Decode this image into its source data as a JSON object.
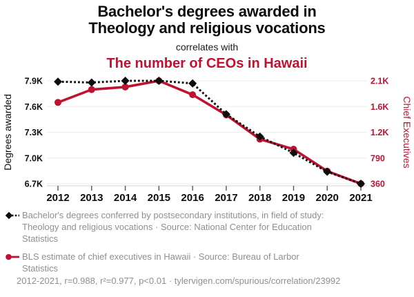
{
  "header": {
    "title_line1": "Bachelor's degrees awarded in",
    "title_line2": "Theology and religious vocations",
    "connector": "correlates with",
    "subtitle": "The number of CEOs in Hawaii"
  },
  "colors": {
    "accent_red": "#c01230",
    "series_black": "#0d0d0d",
    "legend_gray": "#8f8f8f",
    "gridline": "#ececec",
    "axis_line": "#d4d4d4"
  },
  "chart_data": {
    "type": "line",
    "x": [
      2012,
      2013,
      2014,
      2015,
      2016,
      2017,
      2018,
      2019,
      2020,
      2021
    ],
    "x_tick_labels": [
      "2012",
      "2013",
      "2014",
      "2015",
      "2016",
      "2017",
      "2018",
      "2019",
      "2020",
      "2021"
    ],
    "series": [
      {
        "name": "Bachelor's degrees in Theology and religious vocations",
        "axis": "left",
        "color": "#0d0d0d",
        "style": "dashed",
        "marker": "diamond",
        "z_order": 1,
        "values": [
          7890,
          7880,
          7900,
          7900,
          7870,
          7510,
          7250,
          7060,
          6840,
          6700
        ]
      },
      {
        "name": "Chief executives in Hawaii",
        "axis": "right",
        "color": "#c01230",
        "style": "solid",
        "marker": "circle",
        "z_order": 0,
        "values": [
          1680,
          1930,
          1980,
          2100,
          1830,
          1470,
          1090,
          930,
          570,
          360
        ]
      }
    ],
    "left_axis": {
      "label": "Degrees awarded",
      "ticks": [
        6700,
        7000,
        7300,
        7600,
        7900
      ],
      "tick_labels": [
        "6.7K",
        "7.0K",
        "7.3K",
        "7.6K",
        "7.9K"
      ]
    },
    "right_axis": {
      "label": "Chief Executives",
      "ticks": [
        360,
        790,
        1200,
        1600,
        2100
      ],
      "tick_labels": [
        "360",
        "790",
        "1.2K",
        "1.6K",
        "2.1K"
      ]
    },
    "grid": true,
    "legend_position": "bottom"
  },
  "legend": {
    "items": [
      {
        "marker": "black-diamond-dashed",
        "text": "Bachelor's degrees conferred by postsecondary institutions, in field of study: Theology and religious vocations · Source: National Center for Education Statistics"
      },
      {
        "marker": "red-circle-solid",
        "text": "BLS estimate of chief executives in Hawaii · Source: Bureau of Larbor Statistics"
      }
    ]
  },
  "footer": {
    "text": "2012-2021, r=0.988, r²=0.977, p<0.01 · tylervigen.com/spurious/correlation/23992"
  }
}
